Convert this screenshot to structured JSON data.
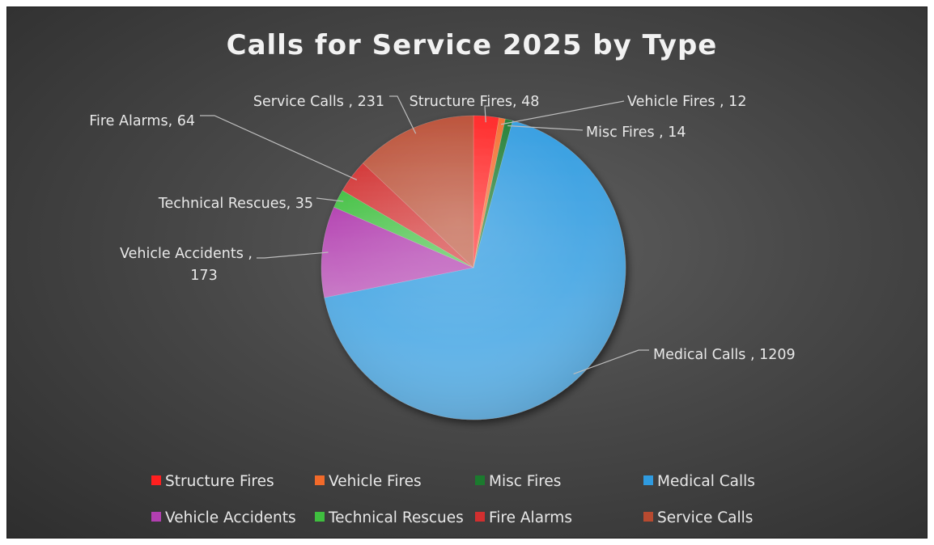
{
  "chart_data": {
    "type": "pie",
    "title": "Calls for Service 2025 by Type",
    "categories": [
      "Structure Fires",
      "Vehicle Fires",
      "Misc Fires",
      "Medical Calls",
      "Vehicle Accidents",
      "Technical Rescues",
      "Fire Alarms",
      "Service Calls"
    ],
    "values": [
      48,
      12,
      14,
      1209,
      173,
      35,
      64,
      231
    ],
    "data_labels": [
      "Structure Fires, 48",
      "Vehicle Fires , 12",
      "Misc Fires , 14",
      "Medical Calls , 1209",
      "Vehicle Accidents , 173",
      "Technical Rescues, 35",
      "Fire Alarms, 64",
      "Service Calls , 231"
    ],
    "colors": [
      "#ff1f1f",
      "#f26a2a",
      "#1b7a2e",
      "#2f9be0",
      "#b23fb0",
      "#3fbf3f",
      "#d12f2f",
      "#b84a30"
    ],
    "legend": {
      "position": "bottom",
      "entries": [
        "Structure Fires",
        "Vehicle Fires",
        "Misc Fires",
        "Medical Calls",
        "Vehicle Accidents",
        "Technical Rescues",
        "Fire Alarms",
        "Service Calls"
      ]
    },
    "background": "#3c3c3c",
    "start_angle_deg": 0,
    "direction": "clockwise"
  }
}
